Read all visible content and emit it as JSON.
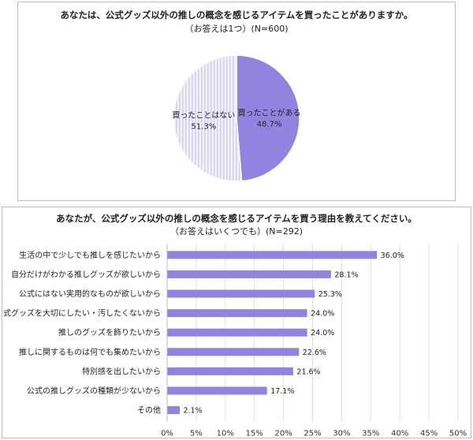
{
  "chart_data": [
    {
      "type": "pie",
      "title": "あなたは、公式グッズ以外の推しの概念を感じるアイテムを買ったことがありますか。",
      "subtitle": "（お答えは1つ）(N=600)",
      "slices": [
        {
          "label": "買ったことがある",
          "value_text": "48.7%",
          "value": 48.7,
          "color": "#9383e0"
        },
        {
          "label": "買ったことはない",
          "value_text": "51.3%",
          "value": 51.3,
          "color": "#ebe8f8"
        }
      ]
    },
    {
      "type": "bar",
      "orientation": "horizontal",
      "title": "あなたが、公式グッズ以外の推しの概念を感じるアイテムを買う理由を教えてください。",
      "subtitle": "（お答えはいくつでも）(N=292)",
      "categories": [
        "生活の中で少しでも推しを感じたいから",
        "自分だけがわかる推しグッズが欲しいから",
        "公式にはない実用的なものが欲しいから",
        "公式グッズを大切にしたい・汚したくないから",
        "推しのグッズを飾りたいから",
        "推しに関するものは何でも集めたいから",
        "特別感を出したいから",
        "公式の推しグッズの種類が少ないから",
        "その他"
      ],
      "values": [
        36.0,
        28.1,
        25.3,
        24.0,
        24.0,
        22.6,
        21.6,
        17.1,
        2.1
      ],
      "value_labels": [
        "36.0%",
        "28.1%",
        "25.3%",
        "24.0%",
        "24.0%",
        "22.6%",
        "21.6%",
        "17.1%",
        "2.1%"
      ],
      "xlim": [
        0,
        50
      ],
      "xticks": [
        "0%",
        "5%",
        "10%",
        "15%",
        "20%",
        "25%",
        "30%",
        "35%",
        "40%",
        "45%",
        "50%"
      ],
      "grid": true,
      "bar_color": "#9383e0"
    }
  ]
}
